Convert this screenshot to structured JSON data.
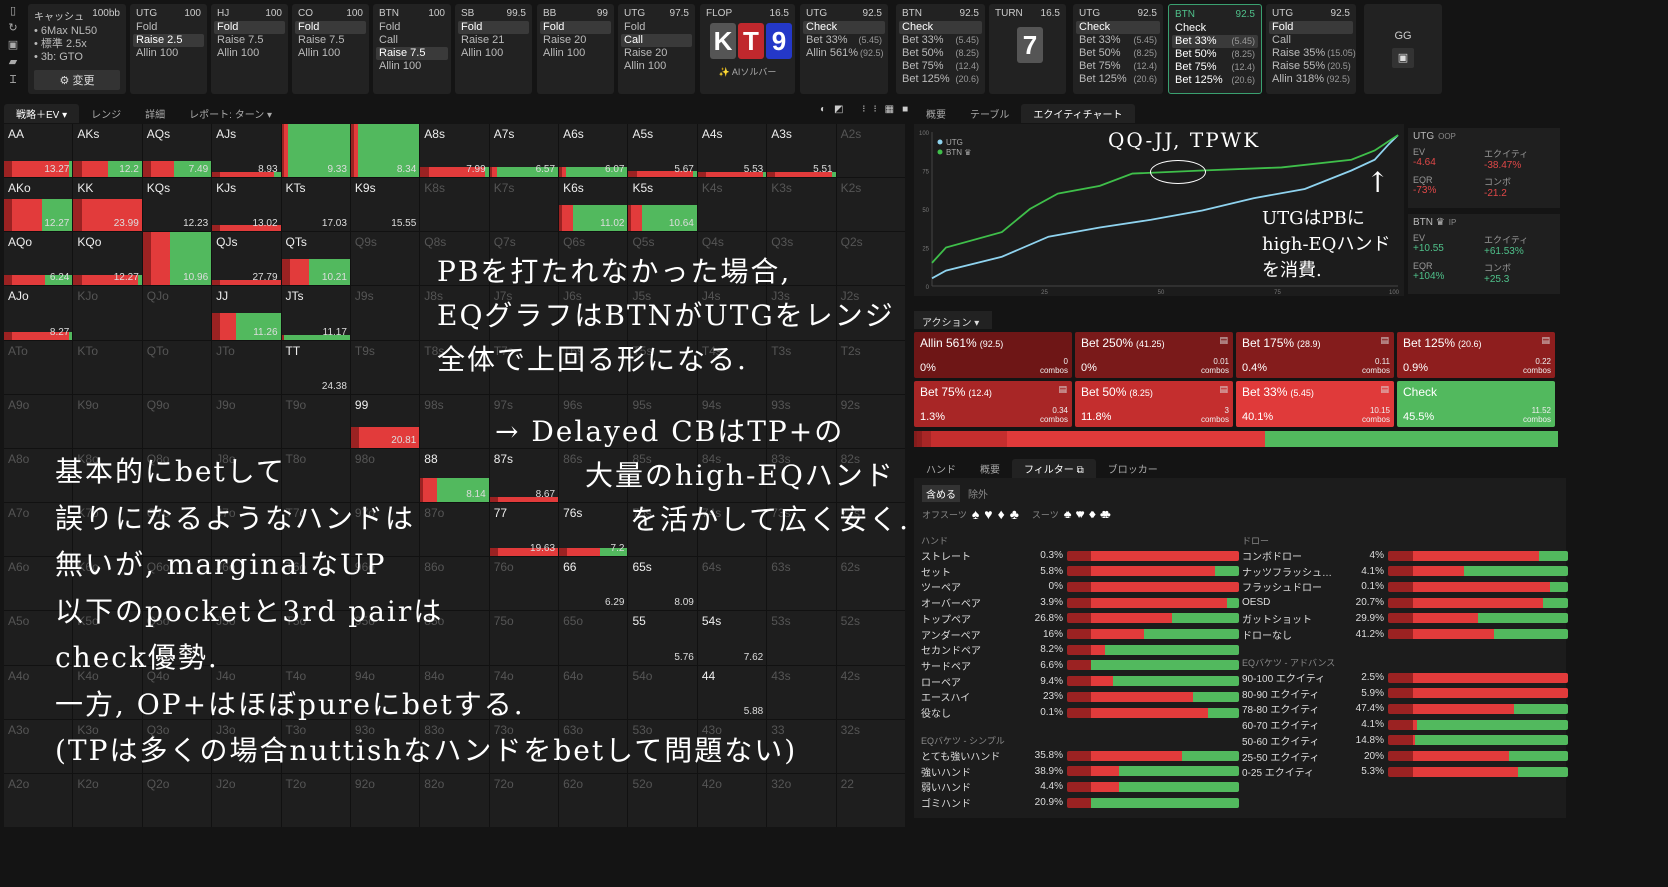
{
  "colors": {
    "bet_red": "#e23b3b",
    "check_green": "#52b95e",
    "utg_line": "#8fd3ef",
    "btn_line": "#3fbf4a",
    "highlight": "#3aa070"
  },
  "sidebar_icons": [
    "bookmark-icon",
    "refresh-icon",
    "save-icon",
    "gamepad-icon",
    "text-cursor-icon"
  ],
  "settings": {
    "title": "キャッシュ",
    "stack": "100bb",
    "lines": [
      "• 6Max NL50",
      "• 標準 2.5x",
      "• 3b: GTO"
    ],
    "change_label": "⚙ 変更"
  },
  "preflop": [
    {
      "pos": "UTG",
      "stack": "100",
      "opts": [
        {
          "l": "Fold"
        },
        {
          "l": "Raise 2.5",
          "sel": true
        },
        {
          "l": "Allin 100"
        }
      ]
    },
    {
      "pos": "HJ",
      "stack": "100",
      "opts": [
        {
          "l": "Fold",
          "sel": true
        },
        {
          "l": "Raise 7.5"
        },
        {
          "l": "Allin 100"
        }
      ]
    },
    {
      "pos": "CO",
      "stack": "100",
      "opts": [
        {
          "l": "Fold",
          "sel": true
        },
        {
          "l": "Raise 7.5"
        },
        {
          "l": "Allin 100"
        }
      ]
    },
    {
      "pos": "BTN",
      "stack": "100",
      "opts": [
        {
          "l": "Fold"
        },
        {
          "l": "Call"
        },
        {
          "l": "Raise 7.5",
          "sel": true
        },
        {
          "l": "Allin 100"
        }
      ]
    },
    {
      "pos": "SB",
      "stack": "99.5",
      "opts": [
        {
          "l": "Fold",
          "sel": true
        },
        {
          "l": "Raise 21"
        },
        {
          "l": "Allin 100"
        }
      ]
    },
    {
      "pos": "BB",
      "stack": "99",
      "opts": [
        {
          "l": "Fold",
          "sel": true
        },
        {
          "l": "Raise 20"
        },
        {
          "l": "Allin 100"
        }
      ]
    },
    {
      "pos": "UTG",
      "stack": "97.5",
      "opts": [
        {
          "l": "Fold"
        },
        {
          "l": "Call",
          "sel": true
        },
        {
          "l": "Raise 20"
        },
        {
          "l": "Allin 100"
        }
      ]
    }
  ],
  "flop": {
    "label": "FLOP",
    "pot": "16.5",
    "cards": [
      "K",
      "T",
      "9"
    ],
    "card_colors": [
      "#555555",
      "#c0282d",
      "#2438c8"
    ],
    "ai_label": "✨ AIソルバー"
  },
  "flop_actions": [
    {
      "pos": "UTG",
      "stack": "92.5",
      "opts": [
        {
          "l": "Check",
          "sel": true
        },
        {
          "l": "Bet 33%",
          "a": "(5.45)"
        },
        {
          "l": "Allin 561%",
          "a": "(92.5)"
        }
      ]
    },
    {
      "pos": "BTN",
      "stack": "92.5",
      "opts": [
        {
          "l": "Check",
          "sel": true
        },
        {
          "l": "Bet 33%",
          "a": "(5.45)"
        },
        {
          "l": "Bet 50%",
          "a": "(8.25)"
        },
        {
          "l": "Bet 75%",
          "a": "(12.4)"
        },
        {
          "l": "Bet 125%",
          "a": "(20.6)"
        }
      ]
    }
  ],
  "turn": {
    "label": "TURN",
    "pot": "16.5",
    "card": "7"
  },
  "turn_actions": [
    {
      "pos": "UTG",
      "stack": "92.5",
      "opts": [
        {
          "l": "Check",
          "sel": true
        },
        {
          "l": "Bet 33%",
          "a": "(5.45)"
        },
        {
          "l": "Bet 50%",
          "a": "(8.25)"
        },
        {
          "l": "Bet 75%",
          "a": "(12.4)"
        },
        {
          "l": "Bet 125%",
          "a": "(20.6)"
        }
      ]
    },
    {
      "pos": "BTN",
      "stack": "92.5",
      "active": true,
      "opts": [
        {
          "l": "Check"
        },
        {
          "l": "Bet 33%",
          "a": "(5.45)",
          "sel": true
        },
        {
          "l": "Bet 50%",
          "a": "(8.25)"
        },
        {
          "l": "Bet 75%",
          "a": "(12.4)"
        },
        {
          "l": "Bet 125%",
          "a": "(20.6)"
        }
      ]
    },
    {
      "pos": "UTG",
      "stack": "92.5",
      "opts": [
        {
          "l": "Fold",
          "sel": true
        },
        {
          "l": "Call"
        },
        {
          "l": "Raise 35%",
          "a": "(15.05)"
        },
        {
          "l": "Raise 55%",
          "a": "(20.5)"
        },
        {
          "l": "Allin 318%",
          "a": "(92.5)"
        }
      ]
    }
  ],
  "gg": {
    "label": "GG"
  },
  "left_tabs": [
    "戦略＋EV ▾",
    "レンジ",
    "詳細",
    "レポート: ターン ▾"
  ],
  "right_tabs": [
    "概要",
    "テーブル",
    "エクイティチャート"
  ],
  "matrix": {
    "ranks": [
      "A",
      "K",
      "Q",
      "J",
      "T",
      "9",
      "8",
      "7",
      "6",
      "5",
      "4",
      "3",
      "2"
    ],
    "cells": {
      "AA": {
        "v": "13.27",
        "bet": 0.95,
        "h": 0.3
      },
      "AKs": {
        "v": "12.2",
        "bet": 0.5,
        "h": 0.3
      },
      "AQs": {
        "v": "7.49",
        "bet": 0.45,
        "h": 0.3
      },
      "AJs": {
        "v": "8.93",
        "bet": 0.9,
        "h": 0.1
      },
      "ATs": {
        "v": "9.33",
        "bet": 0.1,
        "h": 1
      },
      "A9s": {
        "v": "8.34",
        "bet": 0.1,
        "h": 1
      },
      "A8s": {
        "v": "7.99",
        "bet": 0.95,
        "h": 0.2
      },
      "A7s": {
        "v": "6.57",
        "bet": 0.1,
        "h": 0.2
      },
      "A6s": {
        "v": "6.07",
        "bet": 0.1,
        "h": 0.2
      },
      "A5s": {
        "v": "5.67",
        "bet": 0.95,
        "h": 0.12
      },
      "A4s": {
        "v": "5.53",
        "bet": 0.95,
        "h": 0.1
      },
      "A3s": {
        "v": "5.51",
        "bet": 0.95,
        "h": 0.1
      },
      "AKo": {
        "v": "12.27",
        "bet": 0.55,
        "h": 0.6
      },
      "KK": {
        "v": "23.99",
        "bet": 1,
        "h": 0.6
      },
      "KQs": {
        "v": "12.23",
        "bet": 0,
        "h": 0
      },
      "KJs": {
        "v": "13.02",
        "bet": 1,
        "h": 0.12
      },
      "KTs": {
        "v": "17.03",
        "bet": 0,
        "h": 0
      },
      "K9s": {
        "v": "15.55",
        "bet": 0,
        "h": 0
      },
      "K6s": {
        "v": "11.02",
        "bet": 0.2,
        "h": 0.5
      },
      "K5s": {
        "v": "10.64",
        "bet": 0.2,
        "h": 0.5
      },
      "AQo": {
        "v": "6.24",
        "bet": 0.6,
        "h": 0.2
      },
      "KQo": {
        "v": "12.27",
        "bet": 0.95,
        "h": 0.2
      },
      "QQ": {
        "v": "10.96",
        "bet": 0.4,
        "h": 1
      },
      "QJs": {
        "v": "27.79",
        "bet": 1,
        "h": 0.1
      },
      "QTs": {
        "v": "10.21",
        "bet": 0.4,
        "h": 0.5
      },
      "AJo": {
        "v": "8.27",
        "bet": 0.95,
        "h": 0.15
      },
      "JJ": {
        "v": "11.26",
        "bet": 0.35,
        "h": 0.5
      },
      "JTs": {
        "v": "11.17",
        "bet": 0,
        "h": 0.05
      },
      "TT": {
        "v": "24.38",
        "bet": 0,
        "h": 0
      },
      "99": {
        "v": "20.81",
        "bet": 1,
        "h": 0.4
      },
      "88": {
        "v": "8.14",
        "bet": 0.25,
        "h": 0.45
      },
      "87s": {
        "v": "8.67",
        "bet": 1,
        "h": 0.1
      },
      "77": {
        "v": "19.63",
        "bet": 1,
        "h": 0.15
      },
      "76s": {
        "v": "7.2",
        "bet": 0.6,
        "h": 0.15
      },
      "66": {
        "v": "6.29",
        "bet": 0,
        "h": 0
      },
      "65s": {
        "v": "8.09",
        "bet": 0,
        "h": 0
      },
      "55": {
        "v": "5.76",
        "bet": 0,
        "h": 0
      },
      "54s": {
        "v": "7.62",
        "bet": 0,
        "h": 0
      },
      "44": {
        "v": "5.88",
        "bet": 0,
        "h": 0
      }
    }
  },
  "chart_data": {
    "type": "line",
    "xlim": [
      0,
      100
    ],
    "ylim": [
      0,
      100
    ],
    "xticks": [
      25,
      50,
      75,
      100
    ],
    "yticks": [
      0,
      25,
      50,
      75,
      100
    ],
    "legend": "top-left",
    "series": [
      {
        "name": "UTG",
        "color": "#8fd3ef",
        "x": [
          0,
          3,
          15,
          25,
          36,
          47,
          58,
          69,
          80,
          90,
          95,
          98,
          100
        ],
        "y": [
          5,
          10,
          19,
          32,
          38,
          43,
          49,
          57,
          63,
          75,
          82,
          92,
          98
        ]
      },
      {
        "name": "BTN ♛",
        "color": "#3fbf4a",
        "x": [
          0,
          3,
          15,
          21,
          27,
          36,
          43,
          58,
          75,
          90,
          95,
          98,
          100
        ],
        "y": [
          15,
          25,
          35,
          50,
          60,
          65,
          73,
          75,
          77,
          82,
          88,
          94,
          98
        ]
      }
    ]
  },
  "stats": [
    {
      "title": "UTG",
      "sub": "OOP",
      "ev_label": "EV",
      "ev": "-4.64",
      "eq_label": "エクイティ",
      "eq": "-38.47%",
      "eqr_label": "EQR",
      "eqr": "-73%",
      "combo_label": "コンボ",
      "combo": "-21.2",
      "tone": "neg"
    },
    {
      "title": "BTN ♛",
      "sub": "IP",
      "ev_label": "EV",
      "ev": "+10.55",
      "eq_label": "エクイティ",
      "eq": "+61.53%",
      "eqr_label": "EQR",
      "eqr": "+104%",
      "combo_label": "コンボ",
      "combo": "+25.3",
      "tone": "pos"
    }
  ],
  "actions": {
    "header": "アクション ▾",
    "combos_label": "combos",
    "tiles": [
      {
        "l": "Allin 561%",
        "a": "(92.5)",
        "pct": "0%",
        "c": "0",
        "color": "#6e1616"
      },
      {
        "l": "Bet 250%",
        "a": "(41.25)",
        "pct": "0%",
        "c": "0.01",
        "color": "#7a1a1a"
      },
      {
        "l": "Bet 175%",
        "a": "(28.9)",
        "pct": "0.4%",
        "c": "0.11",
        "color": "#841c1c"
      },
      {
        "l": "Bet 125%",
        "a": "(20.6)",
        "pct": "0.9%",
        "c": "0.22",
        "color": "#8e1e1e"
      },
      {
        "l": "Bet 75%",
        "a": "(12.4)",
        "pct": "1.3%",
        "c": "0.34",
        "color": "#a82626"
      },
      {
        "l": "Bet 50%",
        "a": "(8.25)",
        "pct": "11.8%",
        "c": "3",
        "color": "#c42e2e"
      },
      {
        "l": "Bet 33%",
        "a": "(5.45)",
        "pct": "40.1%",
        "c": "10.15",
        "color": "#e03a3a"
      },
      {
        "l": "Check",
        "a": "",
        "pct": "45.5%",
        "c": "11.52",
        "color": "#52b95e"
      }
    ],
    "mix": [
      0,
      0,
      0.4,
      0.9,
      1.3,
      11.8,
      40.1,
      45.5
    ]
  },
  "lower_tabs": [
    "ハンド",
    "概要",
    "フィルター ⧉",
    "ブロッカー"
  ],
  "filter": {
    "include": "含める",
    "exclude": "除外",
    "offsuit_label": "オフスーツ",
    "offsuit": [
      "♠",
      "♥",
      "♦",
      "♣"
    ],
    "suited_label": "スーツ",
    "suited": [
      "♠♠",
      "♥♥",
      "♦♦",
      "♣♣"
    ],
    "hand_title": "ハンド",
    "draw_title": "ドロー",
    "eq_simple_title": "EQバケツ - シンプル",
    "eq_adv_title": "EQバケツ - アドバンス",
    "hand": [
      {
        "n": "ストレート",
        "p": "0.3%",
        "g": 0
      },
      {
        "n": "セット",
        "p": "5.8%",
        "g": 0.14
      },
      {
        "n": "ツーペア",
        "p": "0%",
        "g": 0
      },
      {
        "n": "オーバーペア",
        "p": "3.9%",
        "g": 0.07
      },
      {
        "n": "トップペア",
        "p": "26.8%",
        "g": 0.39
      },
      {
        "n": "アンダーペア",
        "p": "16%",
        "g": 0.55
      },
      {
        "n": "セカンドペア",
        "p": "8.2%",
        "g": 0.78
      },
      {
        "n": "サードペア",
        "p": "6.6%",
        "g": 0.89
      },
      {
        "n": "ローペア",
        "p": "9.4%",
        "g": 0.73
      },
      {
        "n": "エースハイ",
        "p": "23%",
        "g": 0.27
      },
      {
        "n": "役なし",
        "p": "0.1%",
        "g": 0.18
      }
    ],
    "eq_simple": [
      {
        "n": "とても強いハンド",
        "p": "35.8%",
        "g": 0.33
      },
      {
        "n": "強いハンド",
        "p": "38.9%",
        "g": 0.7
      },
      {
        "n": "弱いハンド",
        "p": "4.4%",
        "g": 0.7
      },
      {
        "n": "ゴミハンド",
        "p": "20.9%",
        "g": 0.88
      }
    ],
    "draw": [
      {
        "n": "コンボドロー",
        "p": "4%",
        "g": 0.16
      },
      {
        "n": "ナッツフラッシュ…",
        "p": "4.1%",
        "g": 0.58
      },
      {
        "n": "フラッシュドロー",
        "p": "0.1%",
        "g": 0.1
      },
      {
        "n": "OESD",
        "p": "20.7%",
        "g": 0.14
      },
      {
        "n": "ガットショット",
        "p": "29.9%",
        "g": 0.5
      },
      {
        "n": "ドローなし",
        "p": "41.2%",
        "g": 0.41
      }
    ],
    "eq_adv": [
      {
        "n": "90-100 エクイティ",
        "p": "2.5%",
        "g": 0
      },
      {
        "n": "80-90 エクイティ",
        "p": "5.9%",
        "g": 0
      },
      {
        "n": "78-80 エクイティ",
        "p": "47.4%",
        "g": 0.3
      },
      {
        "n": "60-70 エクイティ",
        "p": "4.1%",
        "g": 0.84
      },
      {
        "n": "50-60 エクイティ",
        "p": "14.8%",
        "g": 0.85
      },
      {
        "n": "25-50 エクイティ",
        "p": "20%",
        "g": 0.33
      },
      {
        "n": "0-25 エクイティ",
        "p": "5.3%",
        "g": 0.28
      }
    ]
  },
  "annotations": {
    "chart_note": "QQ-JJ, TPWK",
    "utg_note": [
      "UTGはPBに",
      "high-EQハンド",
      "を消費."
    ],
    "main_note": [
      "PBを打たれなかった場合,",
      "EQグラフはBTNがUTGをレンジ",
      "全体で上回る形になる."
    ],
    "cb_note": [
      "→ Delayed CBはTP+の",
      "大量のhigh-EQハンド",
      "を活かして広く安く."
    ],
    "left_note": [
      "基本的にbetして",
      "誤りになるようなハンドは",
      "無いが, marginalなUP",
      "以下のpocketと3rd pairは",
      "check優勢.",
      "一方, OP+はほぼpureにbetする.",
      "(TPは多くの場合nuttishなハンドをbetして問題ない)"
    ]
  }
}
